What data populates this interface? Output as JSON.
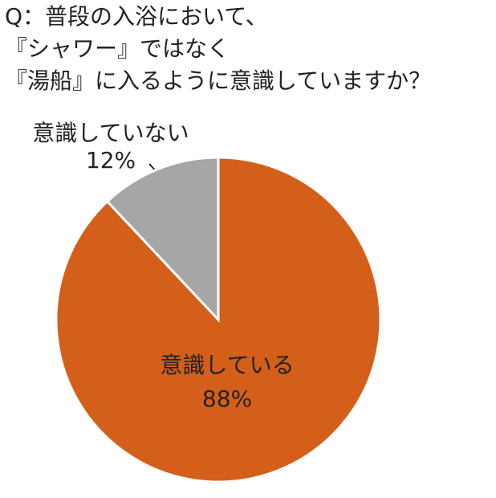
{
  "chart_data": {
    "type": "pie",
    "title": [
      "Q：普段の入浴において、",
      "『シャワー』ではなく",
      "『湯船』に入るように意識していますか？"
    ],
    "categories": [
      "意識している",
      "意識していない"
    ],
    "values": [
      88,
      12
    ],
    "value_labels": [
      "88%",
      "12%"
    ],
    "colors": [
      "#d35f1a",
      "#a6a6a6"
    ]
  }
}
